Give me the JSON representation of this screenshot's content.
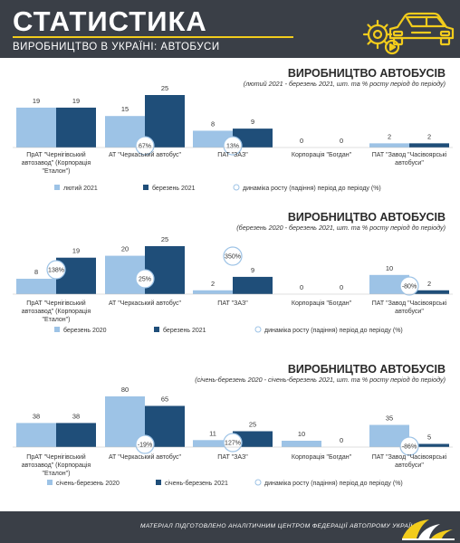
{
  "header": {
    "title": "СТАТИСТИКА",
    "subtitle": "ВИРОБНИЦТВО В УКРАЇНІ: АВТОБУСИ"
  },
  "footer": {
    "text": "МАТЕРІАЛ ПІДГОТОВЛЕНО АНАЛІТИЧНИМ ЦЕНТРОМ ФЕДЕРАЦІЇ АВТОПРОМУ УКРАЇНИ"
  },
  "colors": {
    "header_bg": "#3a3f47",
    "accent_yellow": "#f2cc1c",
    "bar_light": "#9dc3e6",
    "bar_dark": "#1f4e79",
    "circle_border": "#9dc3e6"
  },
  "chart_data": [
    {
      "type": "bar",
      "title": "ВИРОБНИЦТВО АВТОБУСІВ",
      "subtitle": "(лютий 2021 - березень 2021, шт. та % росту період до періоду)",
      "categories": [
        [
          "ПрАТ \"Чернігівський",
          "автозавод\" (Корпорація",
          "\"Еталон\")"
        ],
        [
          "АТ \"Черкаський автобус\""
        ],
        [
          "ПАТ \"ЗАЗ\""
        ],
        [
          "Корпорація \"Богдан\""
        ],
        [
          "ПАТ \"Завод \"Часівоярські",
          "автобуси\""
        ]
      ],
      "series": [
        {
          "name": "лютий 2021",
          "values": [
            19,
            15,
            8,
            0,
            2
          ]
        },
        {
          "name": "березень 2021",
          "values": [
            19,
            25,
            9,
            0,
            2
          ]
        }
      ],
      "growth": [
        "",
        "67%",
        "13%",
        "",
        ""
      ],
      "growth_legend": "динаміка росту (падіння) період до періоду  (%)",
      "ylim": [
        0,
        25
      ]
    },
    {
      "type": "bar",
      "title": "ВИРОБНИЦТВО АВТОБУСІВ",
      "subtitle": "(березень 2020 - березень 2021, шт. та % росту період до періоду)",
      "categories": [
        [
          "ПрАТ \"Чернігівський",
          "автозавод\" (Корпорація",
          "\"Еталон\")"
        ],
        [
          "АТ \"Черкаський автобус\""
        ],
        [
          "ПАТ \"ЗАЗ\""
        ],
        [
          "Корпорація \"Богдан\""
        ],
        [
          "ПАТ \"Завод \"Часівоярські",
          "автобуси\""
        ]
      ],
      "series": [
        {
          "name": "березень 2020",
          "values": [
            8,
            20,
            2,
            0,
            10
          ]
        },
        {
          "name": "березень 2021",
          "values": [
            19,
            25,
            9,
            0,
            2
          ]
        }
      ],
      "growth": [
        "138%",
        "25%",
        "350%",
        "",
        "-80%"
      ],
      "growth_legend": "динаміка росту (падіння) період до періоду  (%)",
      "ylim": [
        0,
        25
      ]
    },
    {
      "type": "bar",
      "title": "ВИРОБНИЦТВО АВТОБУСІВ",
      "subtitle": "(січень-березень 2020 - січень-березень 2021, шт. та % росту період до періоду)",
      "categories": [
        [
          "ПрАТ \"Чернігівський",
          "автозавод\" (Корпорація",
          "\"Еталон\")"
        ],
        [
          "АТ \"Черкаський автобус\""
        ],
        [
          "ПАТ \"ЗАЗ\""
        ],
        [
          "Корпорація \"Богдан\""
        ],
        [
          "ПАТ \"Завод \"Часівоярські",
          "автобуси\""
        ]
      ],
      "series": [
        {
          "name": "січень-березень 2020",
          "values": [
            38,
            80,
            11,
            10,
            35
          ]
        },
        {
          "name": "січень-березень 2021",
          "values": [
            38,
            65,
            25,
            0,
            5
          ]
        }
      ],
      "growth": [
        "",
        "-19%",
        "127%",
        "",
        "-86%"
      ],
      "growth_legend": "динаміка росту (падіння) період до періоду  (%)",
      "ylim": [
        0,
        80
      ]
    }
  ]
}
